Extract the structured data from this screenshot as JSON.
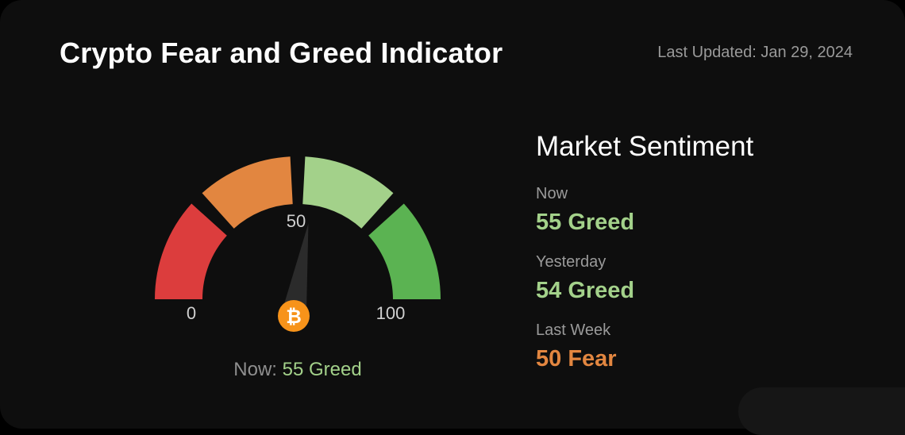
{
  "header": {
    "title": "Crypto Fear and Greed Indicator",
    "last_updated": "Last Updated: Jan 29, 2024"
  },
  "gauge": {
    "value": 55,
    "min_label": "0",
    "mid_label": "50",
    "max_label": "100",
    "icon": "bitcoin-icon",
    "bitcoin_symbol": "₿",
    "segment_colors": [
      "#dc3d3d",
      "#e28640",
      "#a3d18a",
      "#5bb352"
    ],
    "needle_color": "#2b2b2b",
    "coin_color": "#f7931a",
    "caption_label": "Now:",
    "caption_value": "55 Greed"
  },
  "sentiment": {
    "title": "Market Sentiment",
    "rows": [
      {
        "label": "Now",
        "value": "55 Greed",
        "color": "#a3d18a"
      },
      {
        "label": "Yesterday",
        "value": "54 Greed",
        "color": "#a3d18a"
      },
      {
        "label": "Last Week",
        "value": "50 Fear",
        "color": "#e28640"
      }
    ]
  }
}
